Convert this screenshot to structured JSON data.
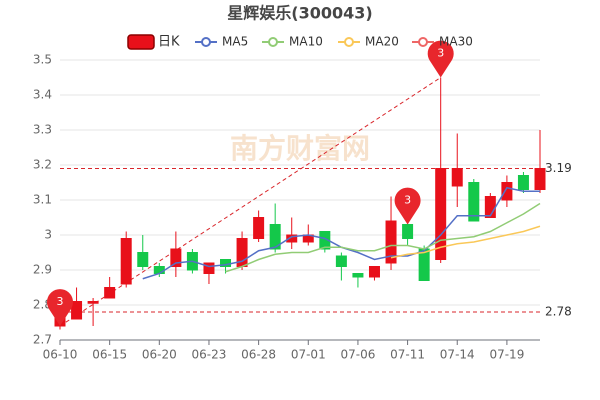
{
  "chart_data": {
    "type": "candlestick",
    "title": "星辉娱乐(300043)",
    "watermark": "南方财富网",
    "categories": [
      "06-10",
      null,
      null,
      "06-15",
      null,
      null,
      "06-20",
      null,
      null,
      "06-23",
      null,
      null,
      "06-28",
      null,
      null,
      "07-01",
      null,
      null,
      "07-06",
      null,
      null,
      "07-11",
      null,
      null,
      "07-14",
      null,
      null,
      "07-19",
      null,
      null
    ],
    "series": [
      {
        "name": "日K",
        "type": "candlestick",
        "up_color": "#e8101a",
        "down_color": "#14c84a",
        "open": [
          2.74,
          2.76,
          2.805,
          2.82,
          2.86,
          2.95,
          2.91,
          2.91,
          2.95,
          2.89,
          2.93,
          2.91,
          2.99,
          3.03,
          2.98,
          2.98,
          3.01,
          2.94,
          2.89,
          2.88,
          2.92,
          3.03,
          2.96,
          2.93,
          3.14,
          3.15,
          3.05,
          3.1,
          3.17,
          3.13
        ],
        "high": [
          2.8,
          2.85,
          2.82,
          2.88,
          3.01,
          3.0,
          2.92,
          3.01,
          2.96,
          2.92,
          2.93,
          3.01,
          3.07,
          3.09,
          3.05,
          3.03,
          3.01,
          2.95,
          2.89,
          2.91,
          3.11,
          3.06,
          2.97,
          3.45,
          3.29,
          3.16,
          3.12,
          3.17,
          3.18,
          3.3
        ],
        "low": [
          2.73,
          2.76,
          2.74,
          2.82,
          2.85,
          2.9,
          2.88,
          2.88,
          2.89,
          2.86,
          2.89,
          2.9,
          2.98,
          2.95,
          2.96,
          2.97,
          2.95,
          2.87,
          2.85,
          2.87,
          2.9,
          2.97,
          2.87,
          2.92,
          3.08,
          3.04,
          3.05,
          3.08,
          3.12,
          3.12
        ],
        "close": [
          2.79,
          2.81,
          2.81,
          2.85,
          2.99,
          2.91,
          2.89,
          2.96,
          2.9,
          2.92,
          2.91,
          2.99,
          3.05,
          2.96,
          3.0,
          3.0,
          2.96,
          2.91,
          2.88,
          2.91,
          3.04,
          2.99,
          2.87,
          3.19,
          3.19,
          3.04,
          3.11,
          3.15,
          3.13,
          3.19
        ]
      },
      {
        "name": "MA5",
        "type": "line",
        "color": "#5470c6",
        "values": [
          null,
          null,
          null,
          null,
          null,
          2.875,
          2.89,
          2.92,
          2.925,
          2.91,
          2.915,
          2.925,
          2.955,
          2.965,
          2.995,
          3.0,
          2.99,
          2.965,
          2.95,
          2.93,
          2.94,
          2.94,
          2.955,
          3.0,
          3.055,
          3.055,
          3.055,
          3.135,
          3.125,
          3.125
        ]
      },
      {
        "name": "MA10",
        "type": "line",
        "color": "#91cc75",
        "values": [
          null,
          null,
          null,
          null,
          null,
          null,
          null,
          null,
          null,
          null,
          2.895,
          2.91,
          2.93,
          2.945,
          2.95,
          2.95,
          2.965,
          2.965,
          2.955,
          2.955,
          2.97,
          2.97,
          2.96,
          2.985,
          2.99,
          2.995,
          3.01,
          3.035,
          3.06,
          3.09
        ]
      },
      {
        "name": "MA20",
        "type": "line",
        "color": "#fac858",
        "values": [
          null,
          null,
          null,
          null,
          null,
          null,
          null,
          null,
          null,
          null,
          null,
          null,
          null,
          null,
          null,
          null,
          null,
          null,
          null,
          null,
          2.935,
          2.945,
          2.95,
          2.965,
          2.975,
          2.98,
          2.99,
          3.0,
          3.01,
          3.025
        ]
      },
      {
        "name": "MA30",
        "type": "line",
        "color": "#ee6666",
        "values": [
          null,
          null,
          null,
          null,
          null,
          null,
          null,
          null,
          null,
          null,
          null,
          null,
          null,
          null,
          null,
          null,
          null,
          null,
          null,
          null,
          null,
          null,
          null,
          null,
          null,
          null,
          null,
          null,
          null,
          null
        ]
      }
    ],
    "ylim": [
      2.7,
      3.5
    ],
    "yticks": [
      2.7,
      2.8,
      2.9,
      3,
      3.1,
      3.2,
      3.3,
      3.4,
      3.5
    ],
    "grid": true,
    "ref_lines": [
      3.19,
      2.78
    ],
    "ref_color": "#d9262b",
    "annotations": [
      {
        "index": 0,
        "value": 2.74,
        "label": "3"
      },
      {
        "index": 21,
        "value": 3.03,
        "label": "3"
      },
      {
        "index": 23,
        "value": 3.45,
        "label": "3"
      }
    ],
    "annotation_color": "#e8262c"
  }
}
